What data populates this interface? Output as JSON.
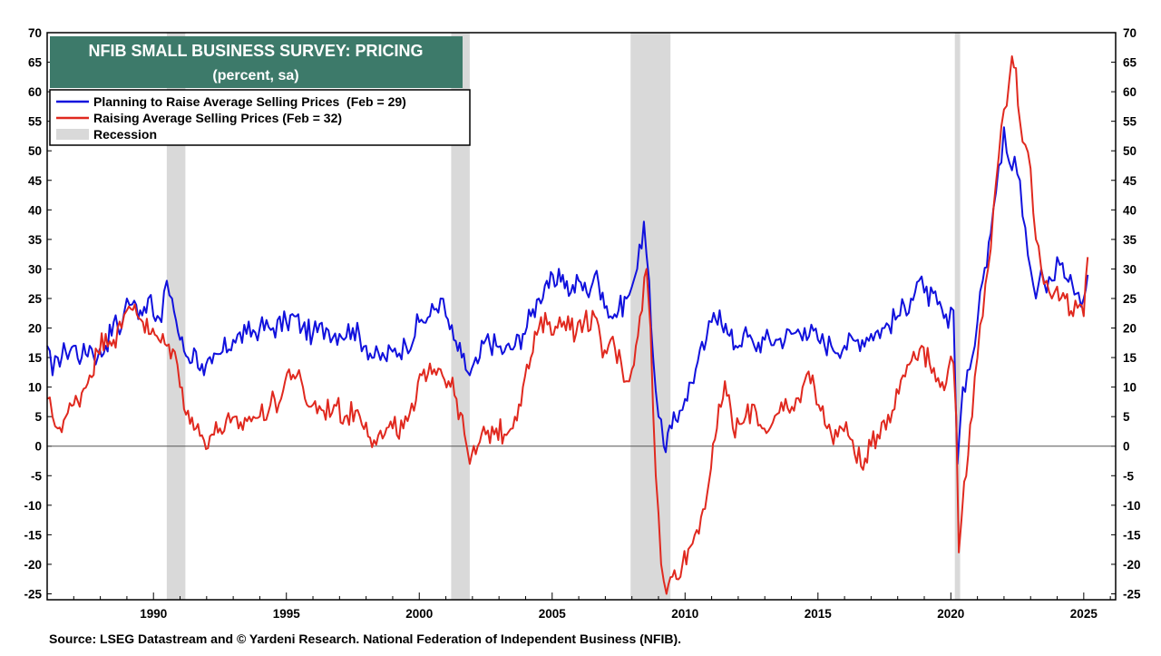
{
  "chart_data": {
    "type": "line",
    "title": "NFIB SMALL BUSINESS SURVEY: PRICING",
    "subtitle": "(percent, sa)",
    "source": "Source: LSEG Datastream and © Yardeni Research. National Federation of Independent Business (NFIB).",
    "colors": {
      "title_bg": "#3d7a6a",
      "planning": "#1111dd",
      "raising": "#e0291f",
      "recession": "#d9d9d9",
      "zero_line": "#555555"
    },
    "xlim": [
      1986.0,
      2026.2
    ],
    "ylim": [
      -26,
      70
    ],
    "x_ticks": [
      1990,
      1995,
      2000,
      2005,
      2010,
      2015,
      2020,
      2025
    ],
    "y_ticks": [
      70,
      65,
      60,
      55,
      50,
      45,
      40,
      35,
      30,
      25,
      20,
      15,
      10,
      5,
      0,
      -5,
      -10,
      -15,
      -20,
      -25
    ],
    "legend": [
      {
        "label": "Planning to Raise Average Selling Prices  (Feb = 29)",
        "kind": "line",
        "color": "#1111dd"
      },
      {
        "label": "Raising Average Selling Prices (Feb = 32)",
        "kind": "line",
        "color": "#e0291f"
      },
      {
        "label": "Recession",
        "kind": "band",
        "color": "#d9d9d9"
      }
    ],
    "recessions": [
      [
        1990.5,
        1991.2
      ],
      [
        2001.2,
        2001.9
      ],
      [
        2007.95,
        2009.45
      ],
      [
        2020.15,
        2020.35
      ]
    ],
    "series": [
      {
        "name": "Planning to Raise Average Selling Prices",
        "color": "#1111dd",
        "points": [
          [
            1986.0,
            17
          ],
          [
            1986.2,
            12
          ],
          [
            1986.4,
            15
          ],
          [
            1986.7,
            16
          ],
          [
            1987.0,
            17
          ],
          [
            1987.3,
            15
          ],
          [
            1987.6,
            17
          ],
          [
            1987.9,
            15
          ],
          [
            1988.2,
            17
          ],
          [
            1988.5,
            21
          ],
          [
            1988.8,
            20
          ],
          [
            1989.0,
            25
          ],
          [
            1989.2,
            24
          ],
          [
            1989.5,
            23
          ],
          [
            1989.8,
            25
          ],
          [
            1990.0,
            22
          ],
          [
            1990.3,
            21
          ],
          [
            1990.5,
            28
          ],
          [
            1990.7,
            25
          ],
          [
            1991.0,
            18
          ],
          [
            1991.3,
            15
          ],
          [
            1991.6,
            16
          ],
          [
            1991.9,
            12
          ],
          [
            1992.2,
            14
          ],
          [
            1992.6,
            16
          ],
          [
            1993.0,
            18
          ],
          [
            1993.5,
            19
          ],
          [
            1994.0,
            20
          ],
          [
            1994.5,
            20
          ],
          [
            1995.0,
            21
          ],
          [
            1995.3,
            22
          ],
          [
            1995.6,
            20
          ],
          [
            1996.0,
            19
          ],
          [
            1996.5,
            20
          ],
          [
            1997.0,
            19
          ],
          [
            1997.5,
            20
          ],
          [
            1998.0,
            17
          ],
          [
            1998.3,
            15
          ],
          [
            1998.7,
            15
          ],
          [
            1999.0,
            16
          ],
          [
            1999.5,
            17
          ],
          [
            2000.0,
            21
          ],
          [
            2000.4,
            22
          ],
          [
            2000.8,
            25
          ],
          [
            2001.0,
            22
          ],
          [
            2001.3,
            18
          ],
          [
            2001.6,
            15
          ],
          [
            2001.9,
            12
          ],
          [
            2002.2,
            14
          ],
          [
            2002.5,
            18
          ],
          [
            2002.9,
            17
          ],
          [
            2003.2,
            16
          ],
          [
            2003.6,
            17
          ],
          [
            2003.9,
            19
          ],
          [
            2004.2,
            22
          ],
          [
            2004.5,
            25
          ],
          [
            2004.8,
            28
          ],
          [
            2005.1,
            27
          ],
          [
            2005.4,
            29
          ],
          [
            2005.7,
            26
          ],
          [
            2006.0,
            28
          ],
          [
            2006.3,
            26
          ],
          [
            2006.6,
            29
          ],
          [
            2006.9,
            26
          ],
          [
            2007.2,
            22
          ],
          [
            2007.5,
            23
          ],
          [
            2007.8,
            25
          ],
          [
            2008.0,
            27
          ],
          [
            2008.2,
            30
          ],
          [
            2008.45,
            38
          ],
          [
            2008.65,
            28
          ],
          [
            2008.8,
            15
          ],
          [
            2009.0,
            5
          ],
          [
            2009.2,
            0
          ],
          [
            2009.5,
            3
          ],
          [
            2009.8,
            6
          ],
          [
            2010.0,
            8
          ],
          [
            2010.4,
            13
          ],
          [
            2010.8,
            18
          ],
          [
            2011.0,
            21
          ],
          [
            2011.3,
            23
          ],
          [
            2011.6,
            19
          ],
          [
            2011.9,
            17
          ],
          [
            2012.2,
            19
          ],
          [
            2012.6,
            17
          ],
          [
            2013.0,
            18
          ],
          [
            2013.5,
            18
          ],
          [
            2014.0,
            19
          ],
          [
            2014.5,
            20
          ],
          [
            2015.0,
            18
          ],
          [
            2015.5,
            17
          ],
          [
            2016.0,
            17
          ],
          [
            2016.5,
            18
          ],
          [
            2017.0,
            19
          ],
          [
            2017.5,
            20
          ],
          [
            2018.0,
            22
          ],
          [
            2018.5,
            25
          ],
          [
            2018.8,
            28
          ],
          [
            2019.0,
            26
          ],
          [
            2019.5,
            24
          ],
          [
            2019.9,
            20
          ],
          [
            2020.1,
            23
          ],
          [
            2020.25,
            -3
          ],
          [
            2020.45,
            10
          ],
          [
            2020.8,
            15
          ],
          [
            2021.0,
            21
          ],
          [
            2021.2,
            28
          ],
          [
            2021.5,
            36
          ],
          [
            2021.7,
            43
          ],
          [
            2021.9,
            48
          ],
          [
            2022.0,
            54
          ],
          [
            2022.2,
            48
          ],
          [
            2022.4,
            49
          ],
          [
            2022.6,
            45
          ],
          [
            2022.8,
            37
          ],
          [
            2023.0,
            30
          ],
          [
            2023.2,
            25
          ],
          [
            2023.4,
            30
          ],
          [
            2023.6,
            26
          ],
          [
            2023.8,
            28
          ],
          [
            2024.0,
            32
          ],
          [
            2024.2,
            31
          ],
          [
            2024.5,
            29
          ],
          [
            2024.8,
            26
          ],
          [
            2025.0,
            25
          ],
          [
            2025.15,
            29
          ]
        ]
      },
      {
        "name": "Raising Average Selling Prices",
        "color": "#e0291f",
        "points": [
          [
            1986.0,
            8
          ],
          [
            1986.2,
            5
          ],
          [
            1986.4,
            3
          ],
          [
            1986.7,
            5
          ],
          [
            1987.0,
            7
          ],
          [
            1987.3,
            9
          ],
          [
            1987.6,
            12
          ],
          [
            1987.9,
            16
          ],
          [
            1988.2,
            19
          ],
          [
            1988.5,
            18
          ],
          [
            1988.8,
            20
          ],
          [
            1989.0,
            23
          ],
          [
            1989.3,
            24
          ],
          [
            1989.6,
            21
          ],
          [
            1989.9,
            19
          ],
          [
            1990.2,
            18
          ],
          [
            1990.5,
            17
          ],
          [
            1990.8,
            16
          ],
          [
            1991.0,
            10
          ],
          [
            1991.3,
            6
          ],
          [
            1991.6,
            3
          ],
          [
            1991.9,
            1
          ],
          [
            1992.2,
            2
          ],
          [
            1992.5,
            3
          ],
          [
            1992.9,
            4
          ],
          [
            1993.2,
            3
          ],
          [
            1993.6,
            5
          ],
          [
            1994.0,
            5
          ],
          [
            1994.4,
            7
          ],
          [
            1994.8,
            8
          ],
          [
            1995.1,
            13
          ],
          [
            1995.4,
            12
          ],
          [
            1995.7,
            8
          ],
          [
            1996.0,
            7
          ],
          [
            1996.4,
            6
          ],
          [
            1996.8,
            7
          ],
          [
            1997.2,
            5
          ],
          [
            1997.6,
            6
          ],
          [
            1998.0,
            4
          ],
          [
            1998.3,
            1
          ],
          [
            1998.7,
            2
          ],
          [
            1999.0,
            3
          ],
          [
            1999.4,
            3
          ],
          [
            1999.8,
            6
          ],
          [
            2000.1,
            12
          ],
          [
            2000.4,
            14
          ],
          [
            2000.8,
            13
          ],
          [
            2001.1,
            11
          ],
          [
            2001.4,
            8
          ],
          [
            2001.7,
            2
          ],
          [
            2001.9,
            -3
          ],
          [
            2002.2,
            0
          ],
          [
            2002.5,
            2
          ],
          [
            2002.9,
            3
          ],
          [
            2003.2,
            2
          ],
          [
            2003.6,
            5
          ],
          [
            2003.9,
            10
          ],
          [
            2004.2,
            15
          ],
          [
            2004.5,
            20
          ],
          [
            2004.9,
            21
          ],
          [
            2005.2,
            20
          ],
          [
            2005.6,
            22
          ],
          [
            2005.9,
            19
          ],
          [
            2006.2,
            21
          ],
          [
            2006.6,
            22
          ],
          [
            2006.9,
            15
          ],
          [
            2007.2,
            18
          ],
          [
            2007.6,
            14
          ],
          [
            2007.8,
            11
          ],
          [
            2008.0,
            13
          ],
          [
            2008.3,
            22
          ],
          [
            2008.55,
            30
          ],
          [
            2008.7,
            20
          ],
          [
            2008.9,
            -5
          ],
          [
            2009.1,
            -20
          ],
          [
            2009.3,
            -25
          ],
          [
            2009.6,
            -21
          ],
          [
            2009.9,
            -20
          ],
          [
            2010.2,
            -17
          ],
          [
            2010.6,
            -12
          ],
          [
            2010.9,
            -6
          ],
          [
            2011.2,
            3
          ],
          [
            2011.5,
            11
          ],
          [
            2011.8,
            3
          ],
          [
            2012.2,
            4
          ],
          [
            2012.6,
            7
          ],
          [
            2012.9,
            3
          ],
          [
            2013.3,
            4
          ],
          [
            2013.7,
            6
          ],
          [
            2014.1,
            6
          ],
          [
            2014.5,
            11
          ],
          [
            2014.8,
            12
          ],
          [
            2015.1,
            6
          ],
          [
            2015.5,
            2
          ],
          [
            2015.9,
            3
          ],
          [
            2016.3,
            1
          ],
          [
            2016.7,
            -4
          ],
          [
            2017.0,
            0
          ],
          [
            2017.4,
            4
          ],
          [
            2017.8,
            6
          ],
          [
            2018.2,
            12
          ],
          [
            2018.6,
            16
          ],
          [
            2018.9,
            17
          ],
          [
            2019.2,
            14
          ],
          [
            2019.6,
            10
          ],
          [
            2019.9,
            13
          ],
          [
            2020.1,
            14
          ],
          [
            2020.2,
            5
          ],
          [
            2020.3,
            -18
          ],
          [
            2020.5,
            -6
          ],
          [
            2020.8,
            5
          ],
          [
            2021.0,
            15
          ],
          [
            2021.2,
            22
          ],
          [
            2021.4,
            30
          ],
          [
            2021.6,
            40
          ],
          [
            2021.8,
            49
          ],
          [
            2022.0,
            57
          ],
          [
            2022.2,
            62
          ],
          [
            2022.3,
            66
          ],
          [
            2022.45,
            64
          ],
          [
            2022.6,
            55
          ],
          [
            2022.8,
            51
          ],
          [
            2023.0,
            47
          ],
          [
            2023.2,
            35
          ],
          [
            2023.4,
            30
          ],
          [
            2023.6,
            28
          ],
          [
            2023.8,
            25
          ],
          [
            2024.0,
            27
          ],
          [
            2024.3,
            25
          ],
          [
            2024.6,
            22
          ],
          [
            2024.85,
            24
          ],
          [
            2025.0,
            22
          ],
          [
            2025.15,
            32
          ]
        ]
      }
    ]
  }
}
